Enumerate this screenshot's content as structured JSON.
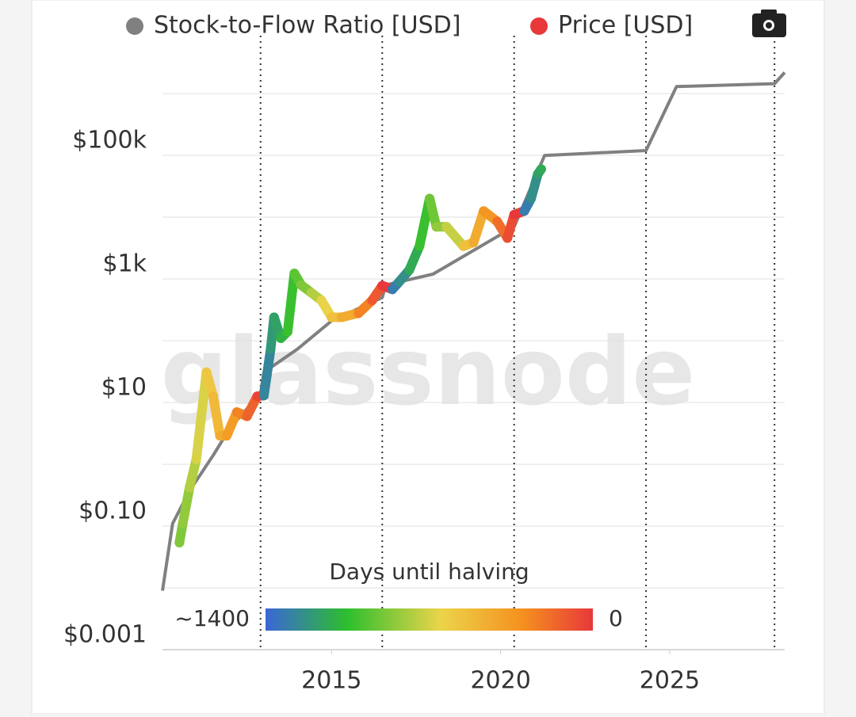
{
  "chart_data": {
    "type": "line",
    "ylog": true,
    "grid": true,
    "watermark": "glassnode",
    "xlim": [
      2010,
      2028.4
    ],
    "xticks": [
      2015,
      2020,
      2025
    ],
    "ylim": [
      0.001,
      3000000
    ],
    "yticks": [
      {
        "value": 0.001,
        "label": "$0.001"
      },
      {
        "value": 0.1,
        "label": "$0.10"
      },
      {
        "value": 10,
        "label": "$10"
      },
      {
        "value": 1000,
        "label": "$1k"
      },
      {
        "value": 100000,
        "label": "$100k"
      }
    ],
    "minor_yticks": [
      0.01,
      1,
      100,
      10000,
      1000000
    ],
    "halvings": [
      2012.9,
      2016.5,
      2020.4,
      2024.3,
      2028.1
    ],
    "colorbar": {
      "title": "Days until halving",
      "ticks": [
        {
          "value": 1400,
          "label": "~1400"
        },
        0
      ],
      "colorscale": [
        [
          1400,
          "#3a66d8"
        ],
        [
          1050,
          "#2dbf2d"
        ],
        [
          650,
          "#ecd44a"
        ],
        [
          300,
          "#f5901f"
        ],
        [
          0,
          "#e8383a"
        ]
      ]
    },
    "series": [
      {
        "name": "Stock-to-Flow Ratio [USD]",
        "color": "#808080",
        "x": [
          2010.0,
          2010.3,
          2010.8,
          2011.5,
          2012.0,
          2012.9,
          2013.0,
          2014.0,
          2015.0,
          2016.5,
          2016.6,
          2018.0,
          2020.4,
          2021.3,
          2024.3,
          2025.2,
          2028.1,
          2028.4
        ],
        "values": [
          0.009,
          0.11,
          0.37,
          1.4,
          3.9,
          14,
          31,
          74,
          210,
          500,
          800,
          1200,
          7000,
          100000,
          120000,
          1300000,
          1450000,
          2200000
        ]
      },
      {
        "name": "Price [USD]",
        "color": "#e8383a",
        "colored_by": "days until halving",
        "x": [
          2010.5,
          2010.6,
          2010.8,
          2011.0,
          2011.3,
          2011.5,
          2011.7,
          2011.9,
          2012.2,
          2012.5,
          2012.8,
          2013.0,
          2013.2,
          2013.3,
          2013.5,
          2013.7,
          2013.9,
          2014.1,
          2014.4,
          2014.7,
          2015.0,
          2015.3,
          2015.8,
          2016.2,
          2016.5,
          2016.8,
          2017.0,
          2017.3,
          2017.6,
          2017.9,
          2018.1,
          2018.4,
          2018.9,
          2019.2,
          2019.5,
          2019.9,
          2020.2,
          2020.4,
          2020.7,
          2020.9,
          2021.1,
          2021.2
        ],
        "values": [
          0.054,
          0.11,
          0.42,
          1.2,
          31,
          12.6,
          2.9,
          2.9,
          7,
          6,
          12.6,
          13,
          74,
          240,
          110,
          140,
          1230,
          800,
          600,
          450,
          240,
          240,
          280,
          450,
          780,
          680,
          900,
          1400,
          3400,
          20000,
          7000,
          7000,
          3400,
          3900,
          12600,
          8500,
          4600,
          11000,
          12600,
          20000,
          50000,
          60000
        ]
      }
    ]
  }
}
